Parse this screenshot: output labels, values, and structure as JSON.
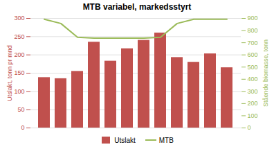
{
  "chart_data": {
    "type": "bar",
    "title": "MTB variabel, markedsstyrt",
    "categories": [
      null,
      null,
      null,
      null,
      null,
      null,
      null,
      null,
      null,
      null,
      null,
      null
    ],
    "series": [
      {
        "name": "Utslakt",
        "type": "bar",
        "color": "#c0504d",
        "values": [
          138,
          135,
          155,
          235,
          183,
          217,
          240,
          260,
          193,
          180,
          203,
          165
        ]
      },
      {
        "name": "MTB",
        "type": "line",
        "color": "#9bbb59",
        "axis": "y2",
        "values": [
          893,
          858,
          745,
          737,
          737,
          737,
          737,
          745,
          858,
          893,
          893,
          893
        ]
      }
    ],
    "ylabel": "Utslakt, tonn pr mnd",
    "y2label": "Stående biomasse, tonn",
    "ylim": [
      0,
      300
    ],
    "yticks": [
      0,
      50,
      100,
      150,
      200,
      250,
      300
    ],
    "y2lim": [
      0,
      900
    ],
    "y2ticks": [
      0,
      100,
      200,
      300,
      400,
      500,
      600,
      700,
      800,
      900
    ],
    "grid": true,
    "legend": "bottom"
  }
}
